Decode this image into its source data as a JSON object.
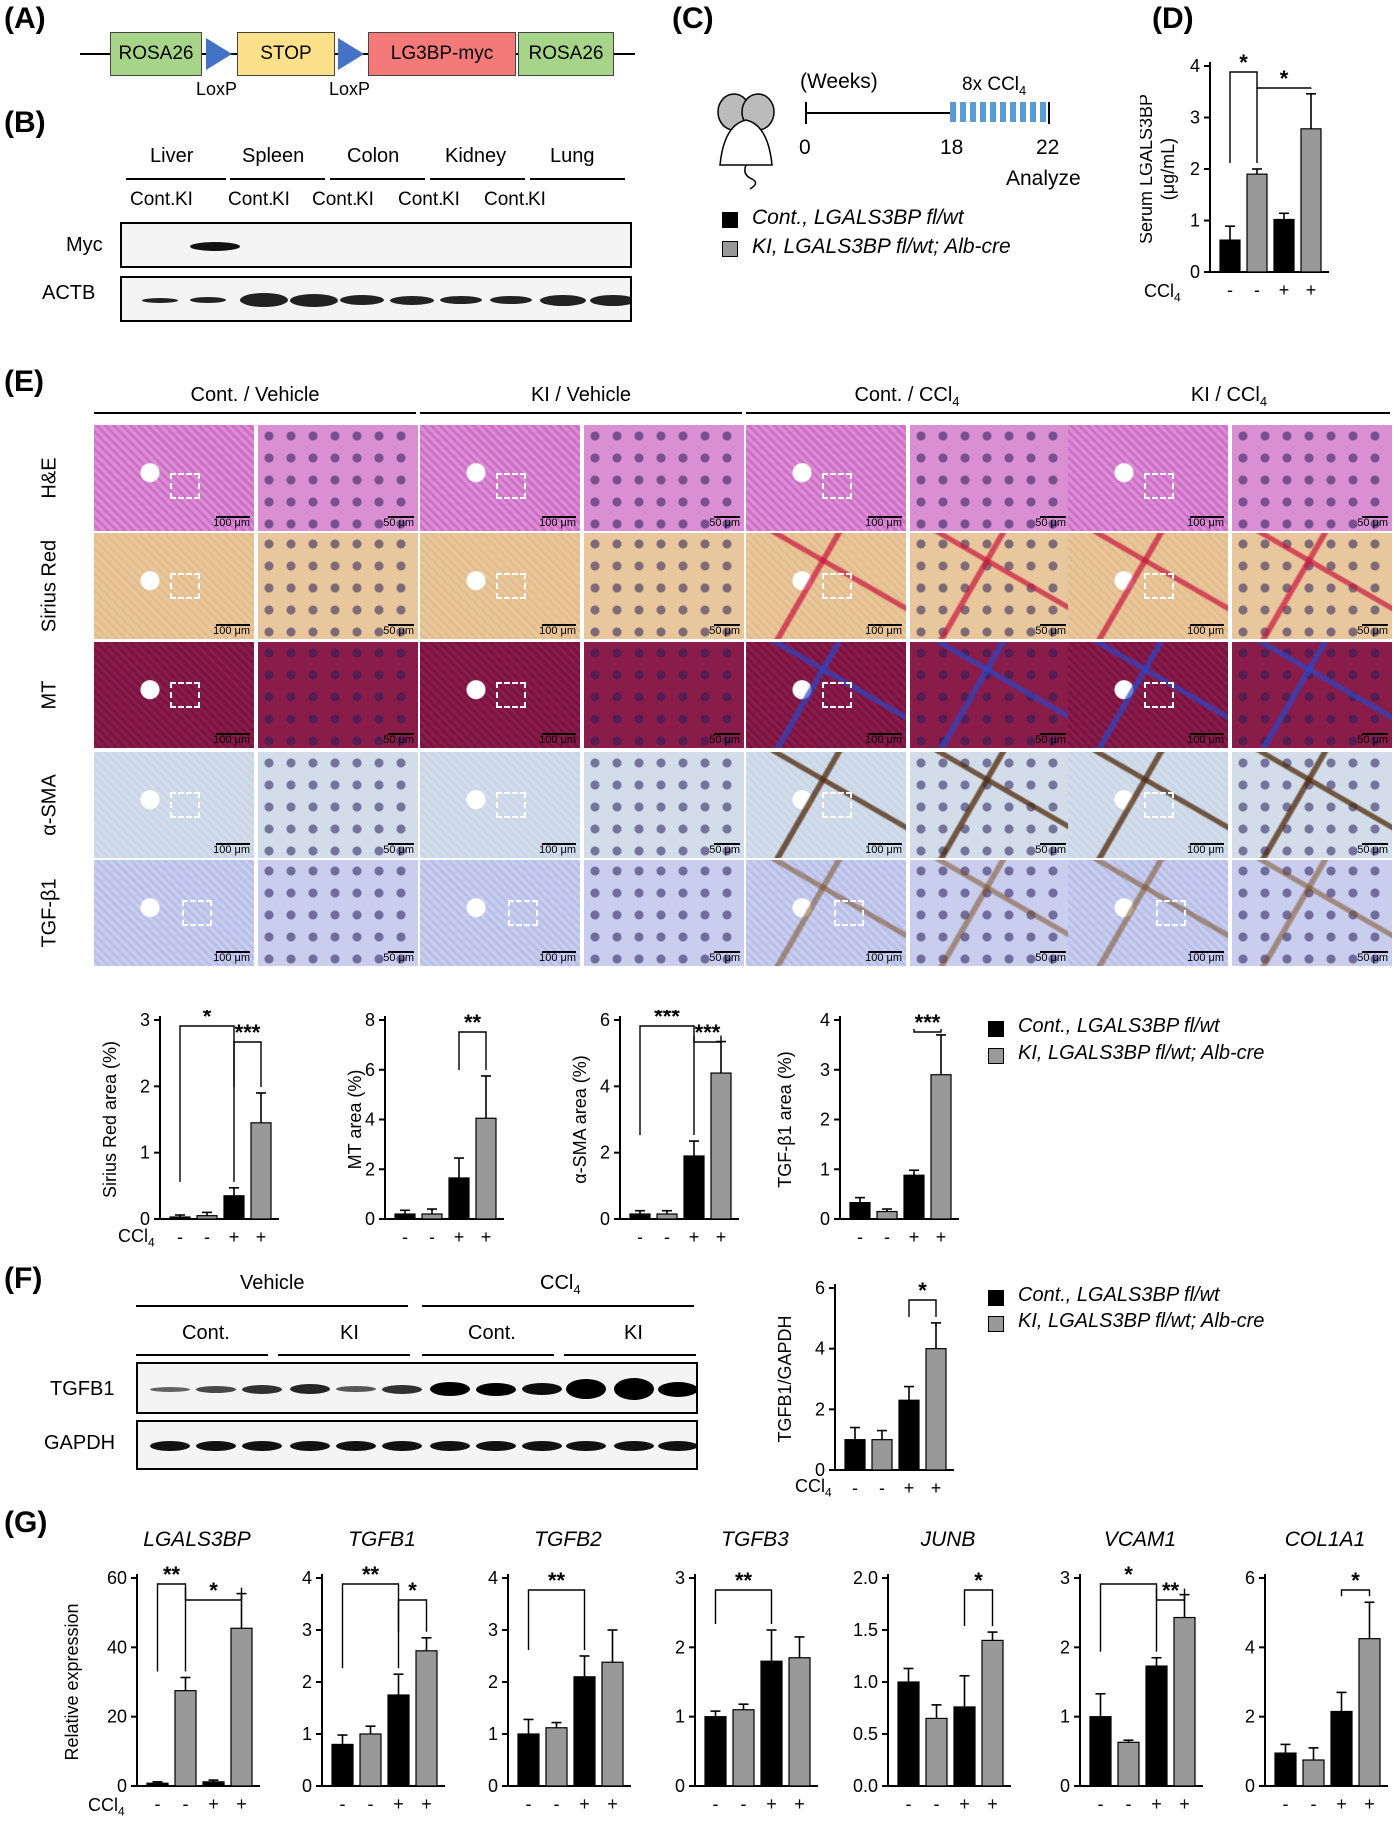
{
  "panels": {
    "A": "(A)",
    "B": "(B)",
    "C": "(C)",
    "D": "(D)",
    "E": "(E)",
    "F": "(F)",
    "G": "(G)"
  },
  "construct": {
    "boxes": [
      "ROSA26",
      "STOP",
      "LG3BP-myc",
      "ROSA26"
    ],
    "loxp": "LoxP",
    "colors": [
      "#a6d58a",
      "#fde08a",
      "#f47a7a",
      "#a6d58a"
    ],
    "loxp_color": "#4472c4"
  },
  "blotB": {
    "tissues": [
      "Liver",
      "Spleen",
      "Colon",
      "Kidney",
      "Lung"
    ],
    "lanes": [
      "Cont.",
      "KI",
      "Cont.",
      "KI",
      "Cont.",
      "KI",
      "Cont.",
      "KI",
      "Cont.",
      "KI"
    ],
    "rows": [
      "Myc",
      "ACTB"
    ]
  },
  "timeline": {
    "units": "(Weeks)",
    "ticks": [
      "0",
      "18",
      "22"
    ],
    "treatment": "8x CCl",
    "treatment_sub": "4",
    "analyze": "Analyze"
  },
  "legend": {
    "cont": "Cont., LGALS3BP fl/wt",
    "ki": "KI, LGALS3BP fl/wt; Alb-cre",
    "cont_color": "#000000",
    "ki_color": "#999999"
  },
  "histology": {
    "groups": [
      "Cont. / Vehicle",
      "KI / Vehicle",
      "Cont. / CCl",
      "KI / CCl"
    ],
    "group_sub": [
      "",
      "",
      "4",
      "4"
    ],
    "rows": [
      "H&E",
      "Sirius Red",
      "MT",
      "α-SMA",
      "TGF-β1"
    ],
    "scale_low": "100 μm",
    "scale_high": "50 μm"
  },
  "ccl4": {
    "label": "CCl",
    "sub": "4",
    "signs": [
      "-",
      "-",
      "+",
      "+"
    ]
  },
  "blotF": {
    "top": [
      "Vehicle",
      "CCl"
    ],
    "top_sub": [
      "",
      "4"
    ],
    "sub": [
      "Cont.",
      "KI",
      "Cont.",
      "KI"
    ],
    "rows": [
      "TGFB1",
      "GAPDH"
    ]
  },
  "chart_data": [
    {
      "id": "D",
      "type": "bar",
      "ylabel": "Serum LGALS3BP (μg/mL)",
      "ylim": [
        0,
        4
      ],
      "yticks": [
        0,
        1,
        2,
        3,
        4
      ],
      "values": [
        0.62,
        1.9,
        1.02,
        2.78
      ],
      "errors": [
        0.27,
        0.1,
        0.12,
        0.68
      ],
      "sig": [
        {
          "a": 0,
          "b": 1,
          "t": "*"
        },
        {
          "a": 1,
          "b": 3,
          "t": "*"
        }
      ]
    },
    {
      "id": "E1",
      "type": "bar",
      "ylabel": "Sirius Red area (%)",
      "ylim": [
        0,
        3
      ],
      "yticks": [
        0,
        1,
        2,
        3
      ],
      "values": [
        0.03,
        0.05,
        0.35,
        1.45
      ],
      "errors": [
        0.03,
        0.05,
        0.12,
        0.45
      ],
      "sig": [
        {
          "a": 0,
          "b": 2,
          "t": "*"
        },
        {
          "a": 2,
          "b": 3,
          "t": "***"
        }
      ]
    },
    {
      "id": "E2",
      "type": "bar",
      "ylabel": "MT area (%)",
      "ylim": [
        0,
        8
      ],
      "yticks": [
        0,
        2,
        4,
        6,
        8
      ],
      "values": [
        0.2,
        0.2,
        1.65,
        4.05
      ],
      "errors": [
        0.15,
        0.2,
        0.8,
        1.7
      ],
      "sig": [
        {
          "a": 2,
          "b": 3,
          "t": "**"
        }
      ]
    },
    {
      "id": "E3",
      "type": "bar",
      "ylabel": "α-SMA area (%)",
      "ylim": [
        0,
        6
      ],
      "yticks": [
        0,
        2,
        4,
        6
      ],
      "values": [
        0.15,
        0.15,
        1.9,
        4.4
      ],
      "errors": [
        0.1,
        0.1,
        0.45,
        0.95
      ],
      "sig": [
        {
          "a": 0,
          "b": 2,
          "t": "***"
        },
        {
          "a": 2,
          "b": 3,
          "t": "***"
        }
      ]
    },
    {
      "id": "E4",
      "type": "bar",
      "ylabel": "TGF-β1 area (%)",
      "ylim": [
        0,
        4
      ],
      "yticks": [
        0,
        1,
        2,
        3,
        4
      ],
      "values": [
        0.33,
        0.15,
        0.88,
        2.9
      ],
      "errors": [
        0.1,
        0.05,
        0.1,
        0.8
      ],
      "sig": [
        {
          "a": 2,
          "b": 3,
          "t": "***"
        }
      ]
    },
    {
      "id": "F",
      "type": "bar",
      "ylabel": "TGFB1/GAPDH",
      "ylim": [
        0,
        6
      ],
      "yticks": [
        0,
        2,
        4,
        6
      ],
      "values": [
        1.0,
        1.0,
        2.3,
        4.0
      ],
      "errors": [
        0.4,
        0.3,
        0.45,
        0.85
      ],
      "sig": [
        {
          "a": 2,
          "b": 3,
          "t": "*"
        }
      ]
    },
    {
      "id": "G1",
      "type": "bar",
      "title": "LGALS3BP",
      "ylabel": "Relative expression",
      "ylim": [
        0,
        60
      ],
      "yticks": [
        0,
        20,
        40,
        60
      ],
      "values": [
        0.8,
        27.5,
        1.2,
        45.5
      ],
      "errors": [
        0.4,
        3.8,
        0.5,
        10
      ],
      "sig": [
        {
          "a": 0,
          "b": 1,
          "t": "**"
        },
        {
          "a": 1,
          "b": 3,
          "t": "*"
        }
      ]
    },
    {
      "id": "G2",
      "type": "bar",
      "title": "TGFB1",
      "ylabel": "",
      "ylim": [
        0,
        4
      ],
      "yticks": [
        0,
        1,
        2,
        3,
        4
      ],
      "values": [
        0.8,
        1.0,
        1.75,
        2.6
      ],
      "errors": [
        0.18,
        0.15,
        0.4,
        0.25
      ],
      "sig": [
        {
          "a": 0,
          "b": 2,
          "t": "**"
        },
        {
          "a": 2,
          "b": 3,
          "t": "*"
        }
      ]
    },
    {
      "id": "G3",
      "type": "bar",
      "title": "TGFB2",
      "ylabel": "",
      "ylim": [
        0,
        4
      ],
      "yticks": [
        0,
        1,
        2,
        3,
        4
      ],
      "values": [
        1.0,
        1.12,
        2.1,
        2.38
      ],
      "errors": [
        0.28,
        0.1,
        0.4,
        0.62
      ],
      "sig": [
        {
          "a": 0,
          "b": 2,
          "t": "**"
        }
      ]
    },
    {
      "id": "G4",
      "type": "bar",
      "title": "TGFB3",
      "ylabel": "",
      "ylim": [
        0,
        3
      ],
      "yticks": [
        0,
        1,
        2,
        3
      ],
      "values": [
        1.0,
        1.1,
        1.8,
        1.85
      ],
      "errors": [
        0.08,
        0.08,
        0.45,
        0.3
      ],
      "sig": [
        {
          "a": 0,
          "b": 2,
          "t": "**"
        }
      ]
    },
    {
      "id": "G5",
      "type": "bar",
      "title": "JUNB",
      "ylabel": "",
      "ylim": [
        0,
        2.0
      ],
      "yticks": [
        0.0,
        0.5,
        1.0,
        1.5,
        2.0
      ],
      "ytick_labels": [
        "0.0",
        "0.5",
        "1.0",
        "1.5",
        "2.0"
      ],
      "values": [
        1.0,
        0.65,
        0.76,
        1.4
      ],
      "errors": [
        0.13,
        0.13,
        0.3,
        0.08
      ],
      "sig": [
        {
          "a": 2,
          "b": 3,
          "t": "*"
        }
      ]
    },
    {
      "id": "G6",
      "type": "bar",
      "title": "VCAM1",
      "ylabel": "",
      "ylim": [
        0,
        3
      ],
      "yticks": [
        0,
        1,
        2,
        3
      ],
      "values": [
        1.0,
        0.63,
        1.73,
        2.43
      ],
      "errors": [
        0.33,
        0.03,
        0.12,
        0.33
      ],
      "sig": [
        {
          "a": 0,
          "b": 2,
          "t": "*"
        },
        {
          "a": 2,
          "b": 3,
          "t": "**"
        }
      ]
    },
    {
      "id": "G7",
      "type": "bar",
      "title": "COL1A1",
      "ylabel": "",
      "ylim": [
        0,
        6
      ],
      "yticks": [
        0,
        2,
        4,
        6
      ],
      "values": [
        0.95,
        0.75,
        2.15,
        4.25
      ],
      "errors": [
        0.25,
        0.35,
        0.55,
        1.05
      ],
      "sig": [
        {
          "a": 2,
          "b": 3,
          "t": "*"
        }
      ]
    }
  ]
}
